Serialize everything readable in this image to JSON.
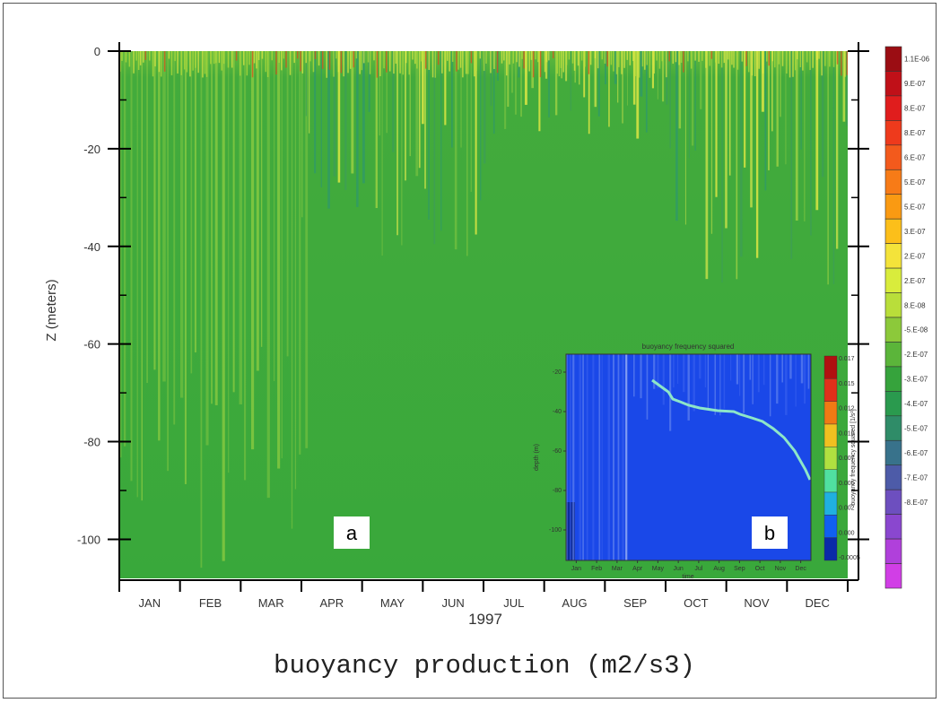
{
  "chart_data": [
    {
      "type": "heatmap",
      "title": "buoyancy production (m2/s3)",
      "ylabel": "Z (meters)",
      "xlabel": "1997",
      "x_ticks": [
        "JAN",
        "FEB",
        "MAR",
        "APR",
        "MAY",
        "JUN",
        "JUL",
        "AUG",
        "SEP",
        "OCT",
        "NOV",
        "DEC"
      ],
      "y_ticks": [
        0,
        -20,
        -40,
        -60,
        -80,
        -100
      ],
      "ylim": [
        -108,
        0
      ],
      "panel_label": "a",
      "colorbar_labels": [
        "1.1E-06",
        "9.E-07",
        "8.E-07",
        "8.E-07",
        "6.E-07",
        "5.E-07",
        "5.E-07",
        "3.E-07",
        "2.E-07",
        "2.E-07",
        "8.E-08",
        "-5.E-08",
        "-2.E-07",
        "-3.E-07",
        "-4.E-07",
        "-5.E-07",
        "-6.E-07",
        "-7.E-07",
        "-8.E-07"
      ],
      "colorbar_colors": [
        "#9b0d13",
        "#c01018",
        "#e01d1d",
        "#ee3a1c",
        "#f35a1c",
        "#f77b17",
        "#fa9a12",
        "#fcbf1a",
        "#f4e33a",
        "#d9ec3c",
        "#b9de3a",
        "#8cc93a",
        "#5bb53a",
        "#36a33c",
        "#2a9a4e",
        "#2f8c68",
        "#38728b",
        "#4d5ba8",
        "#6d4fbf",
        "#8a47cf",
        "#b040db",
        "#d13ee6"
      ],
      "background_color": "#39a83b",
      "surface_stripe_colors": [
        "#9dd243",
        "#c8e14a",
        "#2f9a68",
        "#6fbf40",
        "#e5ea45",
        "#3d9f55"
      ]
    },
    {
      "type": "heatmap",
      "title": "buoyancy frequency squared",
      "ylabel": "depth (m)",
      "xlabel": "time",
      "x_ticks": [
        "Jan",
        "Feb",
        "Mar",
        "Apr",
        "May",
        "Jun",
        "Jul",
        "Aug",
        "Sep",
        "Oct",
        "Nov",
        "Dec"
      ],
      "y_ticks": [
        -20,
        -40,
        -60,
        -80,
        -100
      ],
      "colorbar_label": "buoyancy frequency squared [1/s²]",
      "colorbar_ticks": [
        "0.017",
        "0.015",
        "0.012",
        "0.010",
        "0.007",
        "0.005",
        "0.002",
        "0.000",
        "-0.0005"
      ],
      "colorbar_colors": [
        "#b01010",
        "#e0301a",
        "#f07a14",
        "#f0c020",
        "#b0e040",
        "#50e0a0",
        "#20b0e0",
        "#1060f0",
        "#0a2aa8"
      ],
      "background_color": "#1a48e8",
      "panel_label": "b"
    }
  ]
}
